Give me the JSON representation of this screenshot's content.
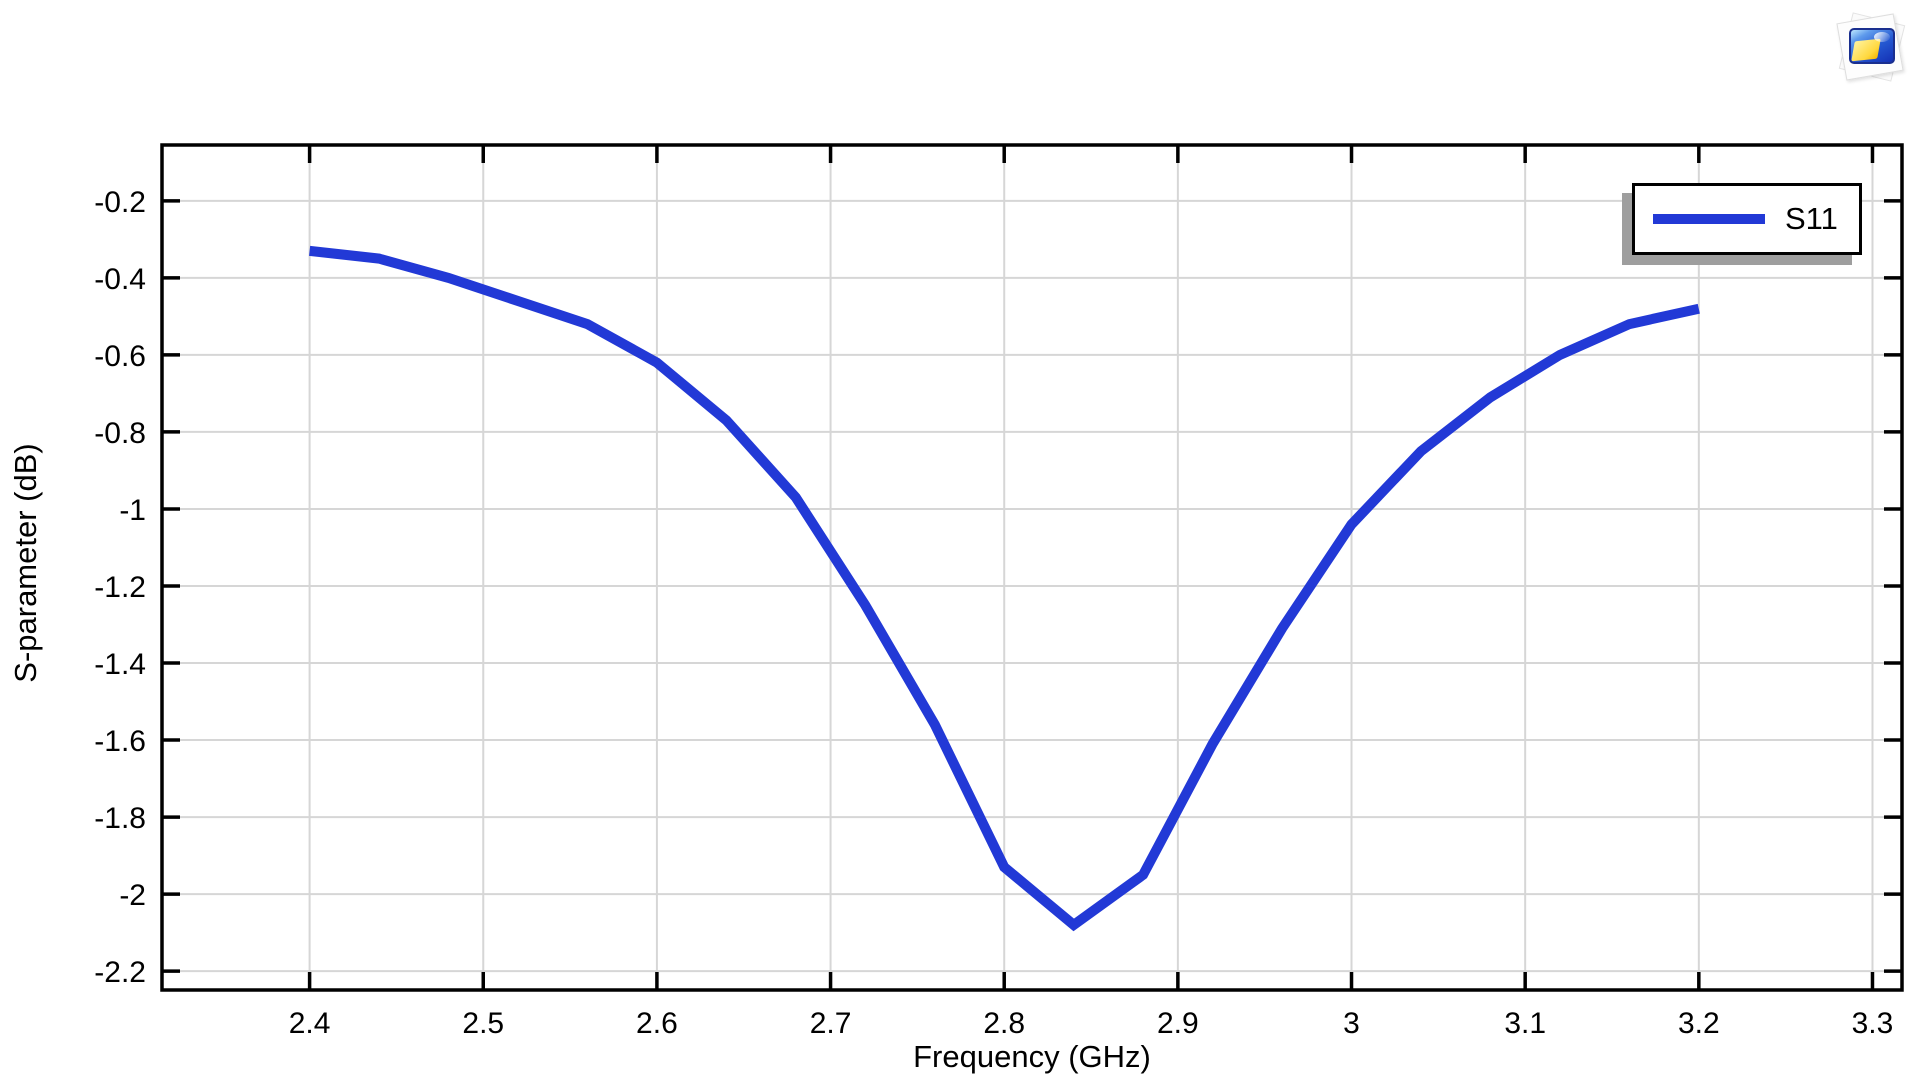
{
  "window": {
    "background": "#ffffff",
    "corner_icon": "plot-snapshot-icon"
  },
  "chart_data": {
    "type": "line",
    "title": "",
    "xlabel": "Frequency (GHz)",
    "ylabel": "S-parameter (dB)",
    "x": [
      2.4,
      2.44,
      2.48,
      2.52,
      2.56,
      2.6,
      2.64,
      2.68,
      2.72,
      2.76,
      2.8,
      2.84,
      2.88,
      2.92,
      2.96,
      3.0,
      3.04,
      3.08,
      3.12,
      3.16,
      3.2
    ],
    "series": [
      {
        "name": "S11",
        "color": "#2239d6",
        "line_width": 10,
        "values": [
          -0.33,
          -0.35,
          -0.4,
          -0.46,
          -0.52,
          -0.62,
          -0.77,
          -0.97,
          -1.25,
          -1.56,
          -1.93,
          -2.08,
          -1.95,
          -1.61,
          -1.31,
          -1.04,
          -0.85,
          -0.71,
          -0.6,
          -0.52,
          -0.48
        ]
      }
    ],
    "xlim": [
      2.315,
      3.317
    ],
    "ylim": [
      -2.249,
      -0.055
    ],
    "xticks": {
      "values": [
        2.4,
        2.5,
        2.6,
        2.7,
        2.8,
        2.9,
        3.0,
        3.1,
        3.2,
        3.3
      ],
      "labels": [
        "2.4",
        "2.5",
        "2.6",
        "2.7",
        "2.8",
        "2.9",
        "3",
        "3.1",
        "3.2",
        "3.3"
      ]
    },
    "yticks": {
      "values": [
        -0.2,
        -0.4,
        -0.6,
        -0.8,
        -1.0,
        -1.2,
        -1.4,
        -1.6,
        -1.8,
        -2.0,
        -2.2
      ],
      "labels": [
        "-0.2",
        "-0.4",
        "-0.6",
        "-0.8",
        "-1",
        "-1.2",
        "-1.4",
        "-1.6",
        "-1.8",
        "-2",
        "-2.2"
      ]
    },
    "grid": true,
    "legend": {
      "position": "top-right",
      "entries": [
        "S11"
      ]
    }
  },
  "style": {
    "grid_color": "#d6d6d6",
    "axis_color": "#000000",
    "legend_shadow_color": "#9e9e9e",
    "tick_label_size": 30,
    "axis_title_size": 31
  }
}
